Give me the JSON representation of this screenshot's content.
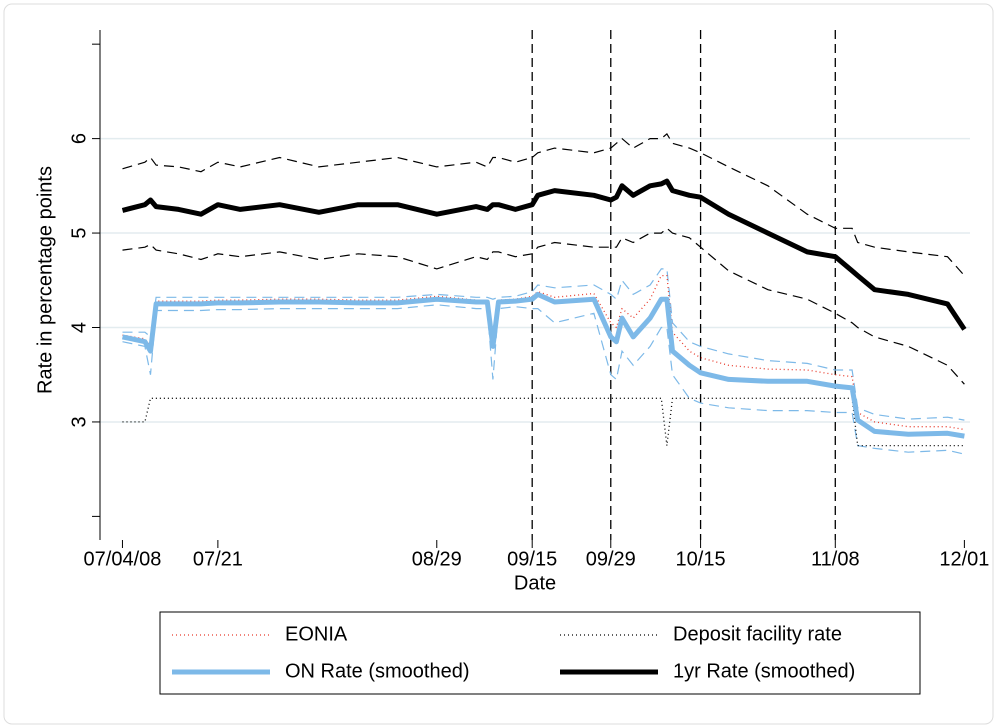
{
  "chart_data": {
    "type": "line",
    "y_label": "Rate in percentage points",
    "x_label": "Date",
    "x": [
      "2008-07-04",
      "2008-07-08",
      "2008-07-09",
      "2008-07-10",
      "2008-07-14",
      "2008-07-18",
      "2008-07-21",
      "2008-07-25",
      "2008-08-01",
      "2008-08-08",
      "2008-08-15",
      "2008-08-22",
      "2008-08-29",
      "2008-09-05",
      "2008-09-07",
      "2008-09-08",
      "2008-09-09",
      "2008-09-12",
      "2008-09-15",
      "2008-09-16",
      "2008-09-19",
      "2008-09-26",
      "2008-09-29",
      "2008-09-30",
      "2008-10-01",
      "2008-10-03",
      "2008-10-06",
      "2008-10-08",
      "2008-10-09",
      "2008-10-10",
      "2008-10-13",
      "2008-10-15",
      "2008-10-20",
      "2008-10-27",
      "2008-11-03",
      "2008-11-08",
      "2008-11-11",
      "2008-11-12",
      "2008-11-15",
      "2008-11-21",
      "2008-11-28",
      "2008-12-01"
    ],
    "xlim": [
      "2008-06-30",
      "2008-12-02"
    ],
    "xticks": [
      {
        "value": "2008-07-04",
        "label": "07/04/08"
      },
      {
        "value": "2008-07-21",
        "label": "07/21"
      },
      {
        "value": "2008-08-29",
        "label": "08/29"
      },
      {
        "value": "2008-09-15",
        "label": "09/15"
      },
      {
        "value": "2008-09-29",
        "label": "09/29"
      },
      {
        "value": "2008-10-15",
        "label": "10/15"
      },
      {
        "value": "2008-11-08",
        "label": "11/08"
      },
      {
        "value": "2008-12-01",
        "label": "12/01"
      }
    ],
    "ylim": [
      1.75,
      7.15
    ],
    "yticks": [
      3,
      4,
      5,
      6
    ],
    "yminorticks": [
      2,
      7
    ],
    "grid": true,
    "event_dates": [
      "2008-09-15",
      "2008-09-29",
      "2008-10-15",
      "2008-11-08"
    ],
    "bands": [
      {
        "color": "#7db9e8",
        "upper": [
          3.95,
          3.95,
          3.9,
          4.32,
          4.32,
          4.32,
          4.32,
          4.32,
          4.32,
          4.32,
          4.32,
          4.32,
          4.35,
          4.32,
          4.32,
          4.3,
          4.32,
          4.33,
          4.38,
          4.45,
          4.42,
          4.45,
          4.35,
          4.3,
          4.5,
          4.35,
          4.45,
          4.62,
          4.62,
          4.05,
          3.85,
          3.8,
          3.72,
          3.65,
          3.62,
          3.55,
          3.55,
          3.15,
          3.08,
          3.03,
          3.05,
          3.02
        ],
        "lower": [
          3.85,
          3.8,
          3.5,
          4.18,
          4.18,
          4.18,
          4.19,
          4.19,
          4.2,
          4.2,
          4.2,
          4.2,
          4.24,
          4.2,
          4.2,
          3.45,
          4.2,
          4.22,
          4.2,
          4.2,
          4.05,
          4.15,
          3.5,
          3.45,
          3.75,
          3.6,
          3.8,
          4.0,
          4.0,
          3.5,
          3.25,
          3.2,
          3.15,
          3.12,
          3.12,
          3.1,
          3.1,
          2.75,
          2.72,
          2.68,
          2.7,
          2.66
        ]
      },
      {
        "color": "#000000",
        "upper": [
          5.68,
          5.75,
          5.8,
          5.72,
          5.7,
          5.65,
          5.75,
          5.7,
          5.8,
          5.7,
          5.75,
          5.8,
          5.7,
          5.75,
          5.7,
          5.8,
          5.8,
          5.75,
          5.8,
          5.85,
          5.9,
          5.85,
          5.9,
          5.95,
          6.0,
          5.9,
          6.0,
          6.0,
          6.05,
          5.95,
          5.9,
          5.85,
          5.7,
          5.5,
          5.2,
          5.05,
          5.05,
          4.9,
          4.85,
          4.8,
          4.75,
          4.55
        ],
        "lower": [
          4.82,
          4.85,
          4.88,
          4.82,
          4.78,
          4.72,
          4.78,
          4.75,
          4.8,
          4.72,
          4.78,
          4.75,
          4.62,
          4.75,
          4.72,
          4.8,
          4.8,
          4.75,
          4.78,
          4.85,
          4.9,
          4.85,
          4.85,
          4.85,
          4.95,
          4.9,
          5.0,
          5.0,
          5.05,
          5.0,
          4.95,
          4.85,
          4.6,
          4.4,
          4.3,
          4.15,
          4.05,
          4.0,
          3.9,
          3.8,
          3.6,
          3.4
        ]
      }
    ],
    "series": [
      {
        "name": "EONIA",
        "color": "#e8392a",
        "width": 1.3,
        "dash": "1,3",
        "values": [
          3.92,
          3.88,
          3.8,
          4.28,
          4.28,
          4.28,
          4.29,
          4.29,
          4.3,
          4.3,
          4.29,
          4.29,
          4.33,
          4.29,
          4.29,
          3.85,
          4.29,
          4.3,
          4.33,
          4.38,
          4.32,
          4.36,
          4.05,
          4.0,
          4.2,
          4.1,
          4.3,
          4.55,
          4.55,
          3.95,
          3.75,
          3.68,
          3.6,
          3.56,
          3.55,
          3.5,
          3.48,
          3.1,
          3.0,
          2.95,
          2.95,
          2.92
        ]
      },
      {
        "name": "Deposit facility rate",
        "color": "#000000",
        "width": 1.3,
        "dash": "1,3",
        "values": [
          3,
          3,
          3.25,
          3.25,
          3.25,
          3.25,
          3.25,
          3.25,
          3.25,
          3.25,
          3.25,
          3.25,
          3.25,
          3.25,
          3.25,
          3.25,
          3.25,
          3.25,
          3.25,
          3.25,
          3.25,
          3.25,
          3.25,
          3.25,
          3.25,
          3.25,
          3.25,
          3.25,
          2.75,
          3.25,
          3.25,
          3.25,
          3.25,
          3.25,
          3.25,
          3.25,
          3.25,
          2.75,
          2.75,
          2.75,
          2.75,
          2.75
        ]
      },
      {
        "name": "ON Rate (smoothed)",
        "color": "#7db9e8",
        "width": 5,
        "values": [
          3.9,
          3.85,
          3.75,
          4.25,
          4.25,
          4.25,
          4.26,
          4.26,
          4.27,
          4.27,
          4.26,
          4.26,
          4.3,
          4.27,
          4.27,
          3.8,
          4.27,
          4.28,
          4.3,
          4.35,
          4.27,
          4.3,
          3.9,
          3.85,
          4.1,
          3.9,
          4.1,
          4.3,
          4.3,
          3.75,
          3.6,
          3.52,
          3.45,
          3.43,
          3.43,
          3.38,
          3.36,
          3.02,
          2.9,
          2.87,
          2.88,
          2.85
        ]
      },
      {
        "name": "1yr Rate (smoothed)",
        "color": "#000000",
        "width": 5,
        "values": [
          5.24,
          5.3,
          5.35,
          5.28,
          5.25,
          5.2,
          5.3,
          5.25,
          5.3,
          5.22,
          5.3,
          5.3,
          5.2,
          5.28,
          5.25,
          5.3,
          5.3,
          5.25,
          5.3,
          5.4,
          5.45,
          5.4,
          5.35,
          5.38,
          5.5,
          5.4,
          5.5,
          5.52,
          5.55,
          5.45,
          5.4,
          5.38,
          5.2,
          5.0,
          4.8,
          4.75,
          4.6,
          4.55,
          4.4,
          4.35,
          4.25,
          3.98
        ]
      }
    ]
  }
}
